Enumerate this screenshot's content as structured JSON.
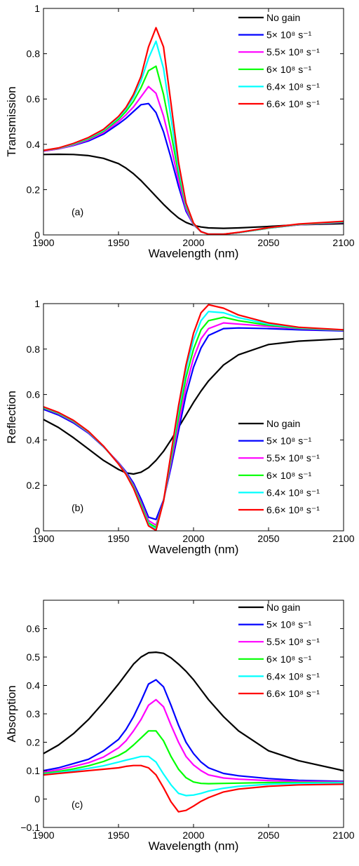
{
  "colors": {
    "no_gain": "#000000",
    "g5": "#0000ff",
    "g55": "#ff00ff",
    "g6": "#00ff00",
    "g64": "#00ffff",
    "g66": "#ff0000"
  },
  "chart_data": [
    {
      "type": "line",
      "panel_label": "(a)",
      "xlabel": "Wavelength (nm)",
      "ylabel": "Transmission",
      "xlim": [
        1900,
        2100
      ],
      "ylim": [
        0,
        1
      ],
      "xticks": [
        1900,
        1950,
        2000,
        2050,
        2100
      ],
      "yticks": [
        0,
        0.2,
        0.4,
        0.6,
        0.8,
        1
      ],
      "ytick_labels": [
        "0",
        "0.2",
        "0.4",
        "0.6",
        "0.8",
        "1"
      ],
      "legend_position": "top-right",
      "x": [
        1900,
        1910,
        1920,
        1930,
        1940,
        1950,
        1955,
        1960,
        1965,
        1970,
        1975,
        1980,
        1985,
        1990,
        1995,
        2000,
        2005,
        2010,
        2020,
        2030,
        2050,
        2070,
        2100
      ],
      "series": [
        {
          "name": "No gain",
          "color_key": "no_gain",
          "values": [
            0.355,
            0.356,
            0.355,
            0.35,
            0.338,
            0.315,
            0.295,
            0.27,
            0.24,
            0.205,
            0.17,
            0.135,
            0.103,
            0.075,
            0.055,
            0.042,
            0.035,
            0.031,
            0.029,
            0.031,
            0.037,
            0.045,
            0.05
          ]
        },
        {
          "name": "5× 10⁸ s⁻¹",
          "color_key": "g5",
          "values": [
            0.37,
            0.38,
            0.395,
            0.415,
            0.445,
            0.49,
            0.515,
            0.545,
            0.575,
            0.58,
            0.54,
            0.455,
            0.34,
            0.215,
            0.105,
            0.045,
            0.015,
            0.003,
            0.003,
            0.01,
            0.03,
            0.045,
            0.055
          ]
        },
        {
          "name": "5.5× 10⁸ s⁻¹",
          "color_key": "g55",
          "values": [
            0.37,
            0.38,
            0.397,
            0.42,
            0.452,
            0.5,
            0.53,
            0.565,
            0.61,
            0.655,
            0.625,
            0.525,
            0.39,
            0.24,
            0.115,
            0.045,
            0.014,
            0.003,
            0.003,
            0.01,
            0.03,
            0.045,
            0.055
          ]
        },
        {
          "name": "6× 10⁸ s⁻¹",
          "color_key": "g6",
          "values": [
            0.372,
            0.382,
            0.4,
            0.424,
            0.458,
            0.51,
            0.545,
            0.59,
            0.65,
            0.725,
            0.745,
            0.62,
            0.45,
            0.27,
            0.125,
            0.048,
            0.014,
            0.003,
            0.003,
            0.01,
            0.03,
            0.046,
            0.057
          ]
        },
        {
          "name": "6.4× 10⁸ s⁻¹",
          "color_key": "g64",
          "values": [
            0.372,
            0.383,
            0.402,
            0.428,
            0.462,
            0.518,
            0.556,
            0.608,
            0.68,
            0.78,
            0.855,
            0.735,
            0.515,
            0.295,
            0.132,
            0.05,
            0.014,
            0.003,
            0.003,
            0.01,
            0.031,
            0.047,
            0.058
          ]
        },
        {
          "name": "6.6× 10⁸ s⁻¹",
          "color_key": "g66",
          "values": [
            0.373,
            0.384,
            0.404,
            0.43,
            0.466,
            0.523,
            0.563,
            0.62,
            0.7,
            0.83,
            0.915,
            0.83,
            0.58,
            0.32,
            0.14,
            0.052,
            0.014,
            0.003,
            0.003,
            0.011,
            0.032,
            0.048,
            0.06
          ]
        }
      ]
    },
    {
      "type": "line",
      "panel_label": "(b)",
      "xlabel": "Wavelength (nm)",
      "ylabel": "Reflection",
      "xlim": [
        1900,
        2100
      ],
      "ylim": [
        0,
        1
      ],
      "xticks": [
        1900,
        1950,
        2000,
        2050,
        2100
      ],
      "yticks": [
        0,
        0.2,
        0.4,
        0.6,
        0.8,
        1
      ],
      "ytick_labels": [
        "0",
        "0.2",
        "0.4",
        "0.6",
        "0.8",
        "1"
      ],
      "legend_position": "bottom-right",
      "x": [
        1900,
        1910,
        1920,
        1930,
        1940,
        1950,
        1955,
        1960,
        1965,
        1970,
        1975,
        1980,
        1985,
        1990,
        1995,
        2000,
        2005,
        2010,
        2020,
        2030,
        2050,
        2070,
        2100
      ],
      "series": [
        {
          "name": "No gain",
          "color_key": "no_gain",
          "values": [
            0.49,
            0.455,
            0.41,
            0.36,
            0.31,
            0.27,
            0.255,
            0.25,
            0.258,
            0.278,
            0.31,
            0.35,
            0.4,
            0.455,
            0.51,
            0.565,
            0.615,
            0.66,
            0.73,
            0.775,
            0.82,
            0.835,
            0.845
          ]
        },
        {
          "name": "5× 10⁸ s⁻¹",
          "color_key": "g5",
          "values": [
            0.535,
            0.51,
            0.475,
            0.43,
            0.37,
            0.3,
            0.26,
            0.21,
            0.14,
            0.06,
            0.05,
            0.135,
            0.28,
            0.44,
            0.6,
            0.72,
            0.805,
            0.86,
            0.89,
            0.893,
            0.89,
            0.885,
            0.88
          ]
        },
        {
          "name": "5.5× 10⁸ s⁻¹",
          "color_key": "g55",
          "values": [
            0.54,
            0.515,
            0.48,
            0.433,
            0.372,
            0.298,
            0.255,
            0.2,
            0.125,
            0.045,
            0.025,
            0.13,
            0.3,
            0.47,
            0.635,
            0.76,
            0.845,
            0.89,
            0.915,
            0.91,
            0.9,
            0.89,
            0.882
          ]
        },
        {
          "name": "6× 10⁸ s⁻¹",
          "color_key": "g6",
          "values": [
            0.542,
            0.517,
            0.482,
            0.435,
            0.372,
            0.296,
            0.252,
            0.195,
            0.118,
            0.035,
            0.015,
            0.13,
            0.315,
            0.5,
            0.675,
            0.8,
            0.885,
            0.925,
            0.94,
            0.925,
            0.905,
            0.892,
            0.883
          ]
        },
        {
          "name": "6.4× 10⁸ s⁻¹",
          "color_key": "g64",
          "values": [
            0.544,
            0.519,
            0.484,
            0.436,
            0.372,
            0.295,
            0.25,
            0.19,
            0.11,
            0.028,
            0.006,
            0.13,
            0.33,
            0.53,
            0.71,
            0.84,
            0.925,
            0.965,
            0.96,
            0.938,
            0.91,
            0.894,
            0.884
          ]
        },
        {
          "name": "6.6× 10⁸ s⁻¹",
          "color_key": "g66",
          "values": [
            0.546,
            0.521,
            0.486,
            0.438,
            0.373,
            0.294,
            0.248,
            0.187,
            0.105,
            0.022,
            0.002,
            0.13,
            0.34,
            0.55,
            0.73,
            0.87,
            0.96,
            0.995,
            0.98,
            0.95,
            0.915,
            0.896,
            0.885
          ]
        }
      ]
    },
    {
      "type": "line",
      "panel_label": "(c)",
      "xlabel": "Wavelength (nm)",
      "ylabel": "Absorption",
      "xlim": [
        1900,
        2100
      ],
      "ylim": [
        -0.1,
        0.7
      ],
      "xticks": [
        1900,
        1950,
        2000,
        2050,
        2100
      ],
      "yticks": [
        -0.1,
        0,
        0.1,
        0.2,
        0.3,
        0.4,
        0.5,
        0.6
      ],
      "ytick_labels": [
        "−0.1",
        "0",
        "0.1",
        "0.2",
        "0.3",
        "0.4",
        "0.5",
        "0.6"
      ],
      "legend_position": "top-right",
      "x": [
        1900,
        1910,
        1920,
        1930,
        1940,
        1950,
        1955,
        1960,
        1965,
        1970,
        1975,
        1980,
        1985,
        1990,
        1995,
        2000,
        2005,
        2010,
        2020,
        2030,
        2050,
        2070,
        2100
      ],
      "series": [
        {
          "name": "No gain",
          "color_key": "no_gain",
          "values": [
            0.16,
            0.19,
            0.23,
            0.28,
            0.34,
            0.405,
            0.44,
            0.475,
            0.5,
            0.515,
            0.517,
            0.513,
            0.497,
            0.475,
            0.45,
            0.42,
            0.385,
            0.35,
            0.29,
            0.24,
            0.17,
            0.135,
            0.1
          ]
        },
        {
          "name": "5× 10⁸ s⁻¹",
          "color_key": "g5",
          "values": [
            0.1,
            0.11,
            0.125,
            0.14,
            0.17,
            0.21,
            0.245,
            0.29,
            0.345,
            0.405,
            0.42,
            0.395,
            0.33,
            0.26,
            0.2,
            0.16,
            0.13,
            0.11,
            0.09,
            0.082,
            0.072,
            0.066,
            0.062
          ]
        },
        {
          "name": "5.5× 10⁸ s⁻¹",
          "color_key": "g55",
          "values": [
            0.095,
            0.103,
            0.115,
            0.128,
            0.148,
            0.18,
            0.205,
            0.24,
            0.28,
            0.33,
            0.35,
            0.325,
            0.26,
            0.2,
            0.15,
            0.12,
            0.1,
            0.085,
            0.074,
            0.07,
            0.065,
            0.062,
            0.06
          ]
        },
        {
          "name": "6× 10⁸ s⁻¹",
          "color_key": "g6",
          "values": [
            0.09,
            0.097,
            0.106,
            0.117,
            0.132,
            0.153,
            0.168,
            0.19,
            0.215,
            0.24,
            0.24,
            0.205,
            0.15,
            0.105,
            0.075,
            0.06,
            0.055,
            0.054,
            0.055,
            0.056,
            0.058,
            0.058,
            0.058
          ]
        },
        {
          "name": "6.4× 10⁸ s⁻¹",
          "color_key": "g64",
          "values": [
            0.087,
            0.093,
            0.1,
            0.108,
            0.117,
            0.13,
            0.137,
            0.143,
            0.15,
            0.15,
            0.13,
            0.088,
            0.05,
            0.02,
            0.012,
            0.014,
            0.02,
            0.028,
            0.038,
            0.045,
            0.052,
            0.055,
            0.057
          ]
        },
        {
          "name": "6.6× 10⁸ s⁻¹",
          "color_key": "g66",
          "values": [
            0.085,
            0.09,
            0.095,
            0.1,
            0.105,
            0.11,
            0.115,
            0.118,
            0.118,
            0.11,
            0.085,
            0.04,
            -0.01,
            -0.045,
            -0.04,
            -0.025,
            -0.008,
            0.005,
            0.025,
            0.035,
            0.045,
            0.05,
            0.052
          ]
        }
      ]
    }
  ]
}
